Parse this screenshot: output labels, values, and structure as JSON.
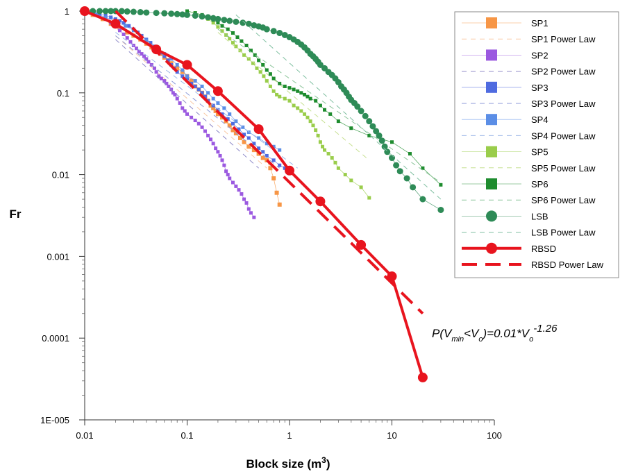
{
  "chart_data": {
    "type": "scatter",
    "xlabel": "Block size (m",
    "xlabel_sup": "3",
    "xlabel_end": ")",
    "ylabel": "Fr",
    "x_scale": "log",
    "y_scale": "log",
    "xlim": [
      0.01,
      100
    ],
    "ylim": [
      1e-05,
      1
    ],
    "x_ticks": [
      {
        "v": 0.01,
        "label": "0.01"
      },
      {
        "v": 0.1,
        "label": "0.1"
      },
      {
        "v": 1,
        "label": "1"
      },
      {
        "v": 10,
        "label": "10"
      },
      {
        "v": 100,
        "label": "100"
      }
    ],
    "y_ticks": [
      {
        "v": 1,
        "label": "1"
      },
      {
        "v": 0.1,
        "label": "0.1"
      },
      {
        "v": 0.01,
        "label": "0.01"
      },
      {
        "v": 0.001,
        "label": "0.001"
      },
      {
        "v": 0.0001,
        "label": "0.0001"
      },
      {
        "v": 1e-05,
        "label": "1E-005"
      }
    ],
    "grid": false,
    "legend_position": "right",
    "annotation": {
      "parts": [
        "P(V",
        "min",
        "<V",
        "o",
        ")=0.01*V",
        "o",
        "-1.26"
      ],
      "styles": [
        "n",
        "sub",
        "n",
        "sub",
        "n",
        "sub",
        "sup"
      ]
    },
    "series": [
      {
        "name": "SP1",
        "marker": "square",
        "color": "#F79646",
        "size": 6,
        "x": [
          0.01,
          0.012,
          0.015,
          0.018,
          0.022,
          0.026,
          0.03,
          0.035,
          0.04,
          0.045,
          0.05,
          0.055,
          0.06,
          0.065,
          0.07,
          0.08,
          0.09,
          0.1,
          0.11,
          0.12,
          0.13,
          0.14,
          0.15,
          0.16,
          0.17,
          0.18,
          0.19,
          0.2,
          0.22,
          0.24,
          0.26,
          0.28,
          0.3,
          0.33,
          0.36,
          0.4,
          0.45,
          0.5,
          0.55,
          0.6,
          0.65,
          0.7,
          0.75,
          0.8
        ],
        "y": [
          1,
          0.9,
          0.8,
          0.7,
          0.62,
          0.55,
          0.5,
          0.45,
          0.4,
          0.36,
          0.33,
          0.3,
          0.27,
          0.25,
          0.23,
          0.2,
          0.18,
          0.16,
          0.14,
          0.12,
          0.11,
          0.1,
          0.09,
          0.08,
          0.07,
          0.065,
          0.06,
          0.055,
          0.05,
          0.045,
          0.04,
          0.035,
          0.032,
          0.028,
          0.025,
          0.022,
          0.02,
          0.018,
          0.016,
          0.015,
          0.012,
          0.009,
          0.006,
          0.0043
        ]
      },
      {
        "name": "SP1 Power Law",
        "type": "line",
        "dash": "7,6",
        "color": "#F9C9A4",
        "width": 1,
        "x": [
          0.02,
          0.6
        ],
        "y": [
          0.5,
          0.012
        ]
      },
      {
        "name": "SP2",
        "marker": "square",
        "color": "#9B59E0",
        "size": 5,
        "x": [
          0.01,
          0.012,
          0.014,
          0.016,
          0.018,
          0.02,
          0.022,
          0.024,
          0.026,
          0.028,
          0.03,
          0.032,
          0.034,
          0.036,
          0.038,
          0.04,
          0.042,
          0.045,
          0.048,
          0.05,
          0.053,
          0.056,
          0.06,
          0.063,
          0.066,
          0.07,
          0.073,
          0.076,
          0.08,
          0.085,
          0.09,
          0.095,
          0.1,
          0.11,
          0.12,
          0.13,
          0.14,
          0.15,
          0.16,
          0.17,
          0.18,
          0.19,
          0.2,
          0.21,
          0.22,
          0.23,
          0.24,
          0.25,
          0.26,
          0.28,
          0.3,
          0.32,
          0.34,
          0.36,
          0.38,
          0.4,
          0.42,
          0.45
        ],
        "y": [
          1,
          0.95,
          0.88,
          0.8,
          0.72,
          0.65,
          0.58,
          0.52,
          0.47,
          0.42,
          0.38,
          0.35,
          0.32,
          0.3,
          0.28,
          0.26,
          0.24,
          0.22,
          0.2,
          0.18,
          0.16,
          0.15,
          0.14,
          0.13,
          0.12,
          0.11,
          0.1,
          0.095,
          0.085,
          0.075,
          0.065,
          0.06,
          0.055,
          0.05,
          0.046,
          0.042,
          0.038,
          0.034,
          0.03,
          0.027,
          0.024,
          0.021,
          0.019,
          0.017,
          0.015,
          0.013,
          0.011,
          0.01,
          0.009,
          0.008,
          0.0072,
          0.0065,
          0.0058,
          0.005,
          0.0045,
          0.0038,
          0.0034,
          0.003
        ]
      },
      {
        "name": "SP2 Power Law",
        "type": "line",
        "dash": "7,6",
        "color": "#8E89C8",
        "width": 1,
        "x": [
          0.02,
          0.5
        ],
        "y": [
          0.45,
          0.012
        ]
      },
      {
        "name": "SP3",
        "marker": "square",
        "color": "#4F6BE0",
        "size": 5,
        "x": [
          0.01,
          0.012,
          0.014,
          0.016,
          0.018,
          0.02,
          0.022,
          0.024,
          0.027,
          0.03,
          0.033,
          0.036,
          0.04,
          0.044,
          0.048,
          0.052,
          0.056,
          0.06,
          0.065,
          0.07,
          0.075,
          0.08,
          0.09,
          0.1,
          0.11,
          0.12,
          0.13,
          0.14,
          0.15,
          0.16,
          0.18,
          0.2,
          0.22,
          0.25,
          0.28,
          0.32,
          0.36,
          0.4,
          0.45,
          0.5,
          0.55,
          0.6,
          0.7,
          0.8,
          0.9,
          1.0
        ],
        "y": [
          1,
          0.96,
          0.92,
          0.88,
          0.84,
          0.8,
          0.76,
          0.72,
          0.66,
          0.6,
          0.55,
          0.5,
          0.45,
          0.41,
          0.37,
          0.34,
          0.31,
          0.28,
          0.25,
          0.22,
          0.2,
          0.18,
          0.16,
          0.15,
          0.13,
          0.12,
          0.11,
          0.1,
          0.09,
          0.08,
          0.07,
          0.062,
          0.055,
          0.048,
          0.042,
          0.036,
          0.031,
          0.028,
          0.024,
          0.021,
          0.019,
          0.017,
          0.015,
          0.013,
          0.012,
          0.011
        ]
      },
      {
        "name": "SP3 Power Law",
        "type": "line",
        "dash": "7,6",
        "color": "#8C9AD8",
        "width": 1,
        "x": [
          0.02,
          0.8
        ],
        "y": [
          0.5,
          0.012
        ]
      },
      {
        "name": "SP4",
        "marker": "square",
        "color": "#5B8EE6",
        "size": 5,
        "x": [
          0.01,
          0.013,
          0.016,
          0.02,
          0.025,
          0.03,
          0.035,
          0.04,
          0.05,
          0.06,
          0.07,
          0.08,
          0.09,
          0.1,
          0.12,
          0.14,
          0.16,
          0.18,
          0.2,
          0.23,
          0.26,
          0.3,
          0.35,
          0.4,
          0.5,
          0.6,
          0.7,
          0.8
        ],
        "y": [
          1,
          0.92,
          0.84,
          0.75,
          0.66,
          0.58,
          0.5,
          0.44,
          0.36,
          0.3,
          0.26,
          0.22,
          0.19,
          0.16,
          0.14,
          0.12,
          0.1,
          0.085,
          0.075,
          0.065,
          0.055,
          0.045,
          0.038,
          0.033,
          0.028,
          0.024,
          0.022,
          0.02
        ]
      },
      {
        "name": "SP4 Power Law",
        "type": "line",
        "dash": "7,6",
        "color": "#9DB8E8",
        "width": 1,
        "x": [
          0.02,
          1.2
        ],
        "y": [
          0.55,
          0.012
        ]
      },
      {
        "name": "SP5",
        "marker": "square",
        "color": "#9ACD4B",
        "size": 5,
        "x": [
          0.1,
          0.12,
          0.14,
          0.16,
          0.18,
          0.2,
          0.22,
          0.24,
          0.26,
          0.28,
          0.3,
          0.33,
          0.36,
          0.4,
          0.44,
          0.48,
          0.52,
          0.56,
          0.6,
          0.65,
          0.7,
          0.75,
          0.8,
          0.9,
          1.0,
          1.1,
          1.2,
          1.3,
          1.4,
          1.5,
          1.6,
          1.7,
          1.8,
          1.9,
          2.0,
          2.1,
          2.2,
          2.4,
          2.6,
          2.8,
          3.0,
          3.5,
          4.0,
          5.0,
          6.0
        ],
        "y": [
          1,
          0.95,
          0.88,
          0.8,
          0.72,
          0.64,
          0.57,
          0.51,
          0.46,
          0.41,
          0.37,
          0.33,
          0.29,
          0.26,
          0.23,
          0.2,
          0.18,
          0.16,
          0.14,
          0.12,
          0.105,
          0.095,
          0.09,
          0.085,
          0.08,
          0.07,
          0.065,
          0.06,
          0.055,
          0.05,
          0.045,
          0.04,
          0.035,
          0.03,
          0.025,
          0.022,
          0.02,
          0.018,
          0.016,
          0.014,
          0.012,
          0.01,
          0.0085,
          0.007,
          0.0052
        ]
      },
      {
        "name": "SP5 Power Law",
        "type": "line",
        "dash": "7,6",
        "color": "#C6E090",
        "width": 1,
        "x": [
          0.2,
          6
        ],
        "y": [
          0.55,
          0.015
        ]
      },
      {
        "name": "SP6",
        "marker": "square",
        "color": "#1E8C2E",
        "size": 5,
        "x": [
          0.1,
          0.12,
          0.14,
          0.16,
          0.18,
          0.2,
          0.22,
          0.25,
          0.28,
          0.31,
          0.34,
          0.38,
          0.42,
          0.46,
          0.5,
          0.55,
          0.6,
          0.65,
          0.7,
          0.8,
          0.9,
          1.0,
          1.1,
          1.2,
          1.3,
          1.4,
          1.5,
          1.6,
          1.8,
          2.0,
          2.2,
          2.5,
          3.0,
          4.0,
          6.0,
          10.0,
          15.0,
          20.0,
          30.0
        ],
        "y": [
          1,
          0.95,
          0.9,
          0.84,
          0.78,
          0.72,
          0.66,
          0.6,
          0.54,
          0.48,
          0.43,
          0.38,
          0.33,
          0.29,
          0.25,
          0.22,
          0.19,
          0.17,
          0.15,
          0.13,
          0.12,
          0.115,
          0.11,
          0.105,
          0.1,
          0.095,
          0.09,
          0.085,
          0.08,
          0.07,
          0.062,
          0.055,
          0.045,
          0.037,
          0.03,
          0.025,
          0.018,
          0.012,
          0.0075
        ]
      },
      {
        "name": "SP6 Power Law",
        "type": "line",
        "dash": "7,6",
        "color": "#8CC59A",
        "width": 1,
        "x": [
          0.2,
          30
        ],
        "y": [
          0.6,
          0.008
        ]
      },
      {
        "name": "LSB",
        "marker": "circle",
        "color": "#2E8B57",
        "size": 9,
        "x": [
          0.01,
          0.012,
          0.014,
          0.016,
          0.018,
          0.02,
          0.023,
          0.026,
          0.03,
          0.035,
          0.04,
          0.05,
          0.06,
          0.07,
          0.08,
          0.09,
          0.1,
          0.12,
          0.14,
          0.16,
          0.18,
          0.2,
          0.23,
          0.26,
          0.3,
          0.35,
          0.4,
          0.45,
          0.5,
          0.55,
          0.6,
          0.7,
          0.8,
          0.9,
          1.0,
          1.1,
          1.2,
          1.3,
          1.4,
          1.5,
          1.6,
          1.7,
          1.8,
          1.9,
          2.0,
          2.2,
          2.4,
          2.6,
          2.8,
          3.0,
          3.2,
          3.4,
          3.6,
          3.8,
          4.0,
          4.3,
          4.6,
          5.0,
          5.5,
          6.0,
          6.5,
          7.0,
          7.5,
          8.0,
          8.5,
          9.0,
          10.0,
          11.0,
          12.0,
          14.0,
          16.0,
          20.0,
          30.0
        ],
        "y": [
          1,
          1,
          1,
          1,
          1,
          1,
          1,
          0.99,
          0.98,
          0.97,
          0.96,
          0.95,
          0.94,
          0.93,
          0.92,
          0.91,
          0.9,
          0.88,
          0.86,
          0.84,
          0.82,
          0.8,
          0.78,
          0.76,
          0.74,
          0.72,
          0.7,
          0.67,
          0.65,
          0.63,
          0.6,
          0.57,
          0.54,
          0.51,
          0.48,
          0.45,
          0.42,
          0.39,
          0.36,
          0.33,
          0.3,
          0.28,
          0.26,
          0.24,
          0.22,
          0.2,
          0.18,
          0.165,
          0.15,
          0.135,
          0.12,
          0.11,
          0.1,
          0.09,
          0.082,
          0.075,
          0.068,
          0.06,
          0.052,
          0.045,
          0.039,
          0.034,
          0.03,
          0.026,
          0.022,
          0.019,
          0.016,
          0.013,
          0.011,
          0.009,
          0.007,
          0.005,
          0.0037
        ]
      },
      {
        "name": "LSB Power Law",
        "type": "line",
        "dash": "7,6",
        "color": "#7FBFA0",
        "width": 1,
        "x": [
          0.3,
          30
        ],
        "y": [
          0.9,
          0.005
        ]
      },
      {
        "name": "RBSD",
        "marker": "circle",
        "color": "#E8141E",
        "size": 14,
        "line": true,
        "width": 4,
        "x": [
          0.01,
          0.02,
          0.05,
          0.1,
          0.2,
          0.5,
          1,
          2,
          5,
          10,
          20
        ],
        "y": [
          1,
          0.7,
          0.34,
          0.22,
          0.105,
          0.036,
          0.0112,
          0.0047,
          0.00138,
          0.00057,
          3.3e-05
        ]
      },
      {
        "name": "RBSD Power Law",
        "type": "line",
        "dash": "22,12",
        "color": "#E8141E",
        "width": 4,
        "x": [
          0.02,
          20
        ],
        "y": [
          1,
          0.0002
        ]
      }
    ]
  }
}
